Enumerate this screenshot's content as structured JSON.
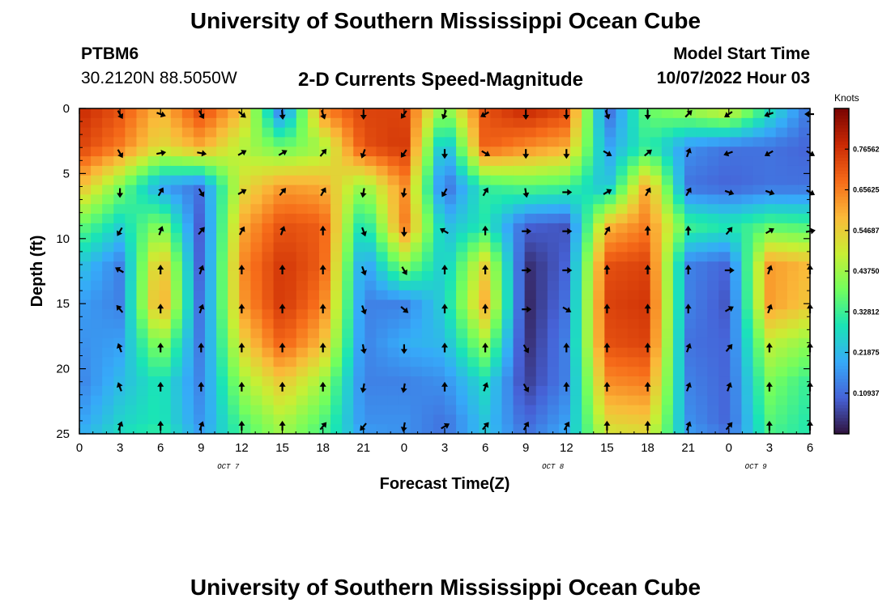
{
  "header": {
    "title": "University of Southern Mississippi Ocean Cube",
    "station": "PTBM6",
    "coordinates": "30.2120N  88.5050W",
    "subtitle": "2-D Currents Speed-Magnitude",
    "model_start_label": "Model Start Time",
    "model_start_value": "10/07/2022 Hour 03"
  },
  "footer": {
    "title": "University of Southern Mississippi Ocean Cube"
  },
  "chart_data": {
    "type": "heatmap",
    "title": "2-D Currents Speed-Magnitude",
    "xlabel": "Forecast Time(Z)",
    "ylabel": "Depth (ft)",
    "x_ticks": [
      "0",
      "3",
      "6",
      "9",
      "12",
      "15",
      "18",
      "21",
      "0",
      "3",
      "6",
      "9",
      "12",
      "15",
      "18",
      "21",
      "0",
      "3",
      "6"
    ],
    "x_range_hours": [
      0,
      54
    ],
    "date_labels": [
      {
        "text": "OCT 7",
        "hour": 11
      },
      {
        "text": "OCT 8",
        "hour": 35
      },
      {
        "text": "OCT 9",
        "hour": 50
      }
    ],
    "y_ticks": [
      0,
      5,
      10,
      15,
      20,
      25
    ],
    "ylim": [
      0,
      25
    ],
    "y_inverted": true,
    "colorbar": {
      "title": "Knots",
      "labels": [
        "0.10937",
        "0.21875",
        "0.32812",
        "0.43750",
        "0.54687",
        "0.65625",
        "0.76562"
      ],
      "range": [
        0,
        0.875
      ],
      "colors": [
        "#30123b",
        "#4662d7",
        "#36aaf9",
        "#1ae4b6",
        "#72fe5e",
        "#c8ef34",
        "#faba39",
        "#f66b19",
        "#ca2a04",
        "#7a0403"
      ]
    },
    "speed_grid": {
      "hours": [
        0,
        3,
        6,
        9,
        12,
        15,
        18,
        21,
        24,
        27,
        30,
        33,
        36,
        39,
        42,
        45,
        48,
        51,
        54
      ],
      "depths": [
        0,
        3,
        6,
        9,
        12,
        15,
        18,
        21,
        24,
        25
      ],
      "values": [
        [
          0.78,
          0.72,
          0.58,
          0.74,
          0.58,
          0.1,
          0.66,
          0.74,
          0.74,
          0.4,
          0.72,
          0.79,
          0.74,
          0.1,
          0.38,
          0.45,
          0.52,
          0.3,
          0.12
        ],
        [
          0.74,
          0.66,
          0.52,
          0.6,
          0.46,
          0.38,
          0.44,
          0.72,
          0.76,
          0.18,
          0.7,
          0.64,
          0.6,
          0.18,
          0.32,
          0.16,
          0.12,
          0.12,
          0.1
        ],
        [
          0.58,
          0.4,
          0.18,
          0.12,
          0.52,
          0.62,
          0.6,
          0.42,
          0.64,
          0.1,
          0.32,
          0.36,
          0.34,
          0.22,
          0.62,
          0.12,
          0.1,
          0.12,
          0.12
        ],
        [
          0.38,
          0.26,
          0.42,
          0.08,
          0.6,
          0.72,
          0.7,
          0.26,
          0.66,
          0.22,
          0.3,
          0.1,
          0.08,
          0.58,
          0.66,
          0.34,
          0.3,
          0.36,
          0.34
        ],
        [
          0.24,
          0.14,
          0.6,
          0.08,
          0.64,
          0.76,
          0.7,
          0.16,
          0.42,
          0.24,
          0.54,
          0.03,
          0.1,
          0.72,
          0.74,
          0.14,
          0.1,
          0.62,
          0.58
        ],
        [
          0.18,
          0.14,
          0.64,
          0.1,
          0.62,
          0.76,
          0.66,
          0.14,
          0.14,
          0.26,
          0.6,
          0.02,
          0.12,
          0.74,
          0.76,
          0.14,
          0.08,
          0.62,
          0.56
        ],
        [
          0.16,
          0.18,
          0.44,
          0.12,
          0.54,
          0.7,
          0.58,
          0.14,
          0.2,
          0.22,
          0.44,
          0.03,
          0.14,
          0.72,
          0.74,
          0.12,
          0.1,
          0.48,
          0.42
        ],
        [
          0.14,
          0.22,
          0.3,
          0.14,
          0.44,
          0.56,
          0.44,
          0.14,
          0.14,
          0.16,
          0.28,
          0.05,
          0.14,
          0.64,
          0.66,
          0.14,
          0.1,
          0.4,
          0.32
        ],
        [
          0.18,
          0.26,
          0.3,
          0.16,
          0.36,
          0.46,
          0.36,
          0.16,
          0.16,
          0.12,
          0.24,
          0.1,
          0.18,
          0.54,
          0.56,
          0.16,
          0.1,
          0.36,
          0.3
        ],
        [
          0.2,
          0.28,
          0.32,
          0.18,
          0.34,
          0.44,
          0.34,
          0.18,
          0.16,
          0.12,
          0.24,
          0.12,
          0.2,
          0.5,
          0.52,
          0.18,
          0.12,
          0.34,
          0.3
        ]
      ]
    },
    "direction_arrows": {
      "hours": [
        3,
        6,
        9,
        12,
        15,
        18,
        21,
        24,
        27,
        30,
        33,
        36,
        39,
        42,
        45,
        48,
        51,
        54
      ],
      "depths": [
        0,
        3,
        6,
        9,
        12,
        15,
        18,
        21,
        24
      ],
      "angle_deg_cw_from_north": [
        [
          150,
          110,
          150,
          130,
          175,
          160,
          180,
          215,
          200,
          240,
          180,
          180,
          160,
          180,
          45,
          235,
          250,
          270
        ],
        [
          150,
          80,
          100,
          60,
          60,
          40,
          200,
          215,
          180,
          120,
          180,
          180,
          120,
          50,
          20,
          250,
          240,
          120
        ],
        [
          180,
          30,
          150,
          60,
          40,
          30,
          190,
          190,
          210,
          30,
          170,
          90,
          60,
          30,
          30,
          110,
          110,
          120
        ],
        [
          210,
          20,
          40,
          30,
          20,
          0,
          160,
          180,
          300,
          0,
          90,
          90,
          30,
          0,
          0,
          40,
          60,
          80
        ],
        [
          300,
          0,
          20,
          0,
          0,
          0,
          160,
          150,
          0,
          0,
          90,
          90,
          0,
          0,
          0,
          90,
          20,
          0
        ],
        [
          320,
          0,
          20,
          0,
          0,
          0,
          160,
          130,
          0,
          0,
          90,
          120,
          0,
          0,
          0,
          60,
          20,
          0
        ],
        [
          340,
          0,
          0,
          0,
          0,
          0,
          170,
          180,
          0,
          0,
          150,
          0,
          0,
          0,
          20,
          40,
          0,
          0
        ],
        [
          340,
          0,
          0,
          0,
          0,
          0,
          190,
          190,
          0,
          20,
          150,
          0,
          0,
          0,
          20,
          20,
          0,
          0
        ],
        [
          20,
          0,
          20,
          0,
          0,
          40,
          220,
          190,
          60,
          40,
          30,
          30,
          0,
          0,
          20,
          40,
          0,
          0
        ]
      ]
    }
  }
}
